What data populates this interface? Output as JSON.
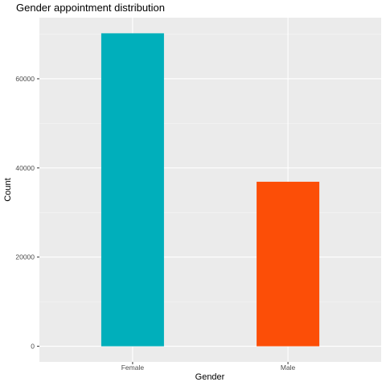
{
  "chart_data": {
    "type": "bar",
    "title": "Gender appointment distribution",
    "xlabel": "Gender",
    "ylabel": "Count",
    "categories": [
      "Female",
      "Male"
    ],
    "values": [
      70200,
      36900
    ],
    "colors": [
      "#00AFBB",
      "#FC4E07"
    ],
    "ylim": [
      -3500,
      73700
    ],
    "yticks": [
      0,
      20000,
      40000,
      60000
    ],
    "ytick_labels": [
      "0",
      "20000",
      "40000",
      "60000"
    ],
    "grid": true,
    "legend": "none"
  },
  "style": {
    "panel_background": "#EBEBEB",
    "grid_major": "#FFFFFF",
    "grid_minor": "#F5F5F5",
    "tick_color": "#333333"
  }
}
